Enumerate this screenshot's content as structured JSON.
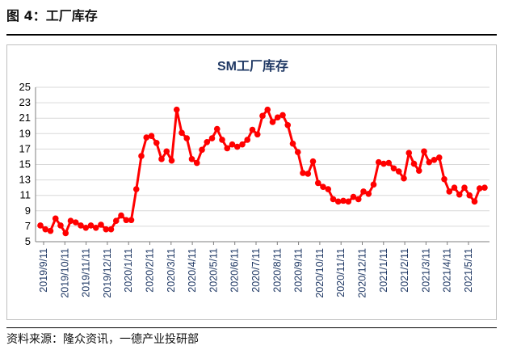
{
  "figure_label": "图 4：工厂库存",
  "source_note": "资料来源：隆众资讯，一德产业投研部",
  "colors": {
    "series": "#ff0000",
    "title": "#1f3864",
    "grid": "#d9d9d9",
    "axis": "#7f7f7f"
  },
  "chart_data": {
    "type": "line",
    "title": "SM工厂库存",
    "xlabel": "",
    "ylabel": "",
    "ylim": [
      5,
      25
    ],
    "yticks": [
      5,
      7,
      9,
      11,
      13,
      15,
      17,
      19,
      21,
      23,
      25
    ],
    "grid": true,
    "legend": "none",
    "x_tick_labels": [
      "2019/9/11",
      "2019/10/11",
      "2019/11/11",
      "2019/12/11",
      "2020/1/11",
      "2020/2/11",
      "2020/3/11",
      "2020/4/11",
      "2020/5/11",
      "2020/6/11",
      "2020/7/11",
      "2020/8/11",
      "2020/9/11",
      "2020/10/11",
      "2020/11/11",
      "2020/12/11",
      "2021/1/11",
      "2021/2/11",
      "2021/3/11",
      "2021/4/11",
      "2021/5/11"
    ],
    "series": [
      {
        "values": [
          7.1,
          6.6,
          6.4,
          8.0,
          7.1,
          6.1,
          7.7,
          7.5,
          7.1,
          6.8,
          7.1,
          6.8,
          7.2,
          6.6,
          6.6,
          7.7,
          8.4,
          7.8,
          7.8,
          11.8,
          16.1,
          18.5,
          18.7,
          17.8,
          15.7,
          16.7,
          15.5,
          22.1,
          19.1,
          18.4,
          15.7,
          15.2,
          16.9,
          17.9,
          18.4,
          19.6,
          18.2,
          17.1,
          17.6,
          17.3,
          17.6,
          18.2,
          19.5,
          18.9,
          21.3,
          22.1,
          20.5,
          21.1,
          21.4,
          20.1,
          17.7,
          16.6,
          13.9,
          13.8,
          15.4,
          12.6,
          12.1,
          11.8,
          10.5,
          10.2,
          10.3,
          10.2,
          10.8,
          10.5,
          11.5,
          11.2,
          12.4,
          15.3,
          15.1,
          15.2,
          14.5,
          14.1,
          13.2,
          16.5,
          15.1,
          14.2,
          16.7,
          15.3,
          15.6,
          15.9,
          13.1,
          11.5,
          12.0,
          11.1,
          12.0,
          11.0,
          10.2,
          11.9,
          12.0
        ]
      }
    ]
  }
}
